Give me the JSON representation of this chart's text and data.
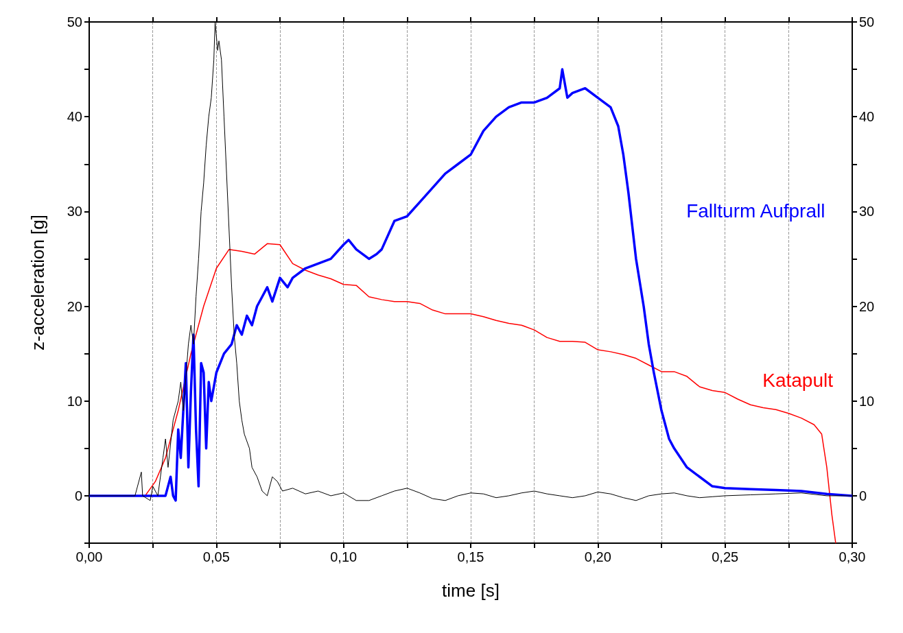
{
  "chart_data": {
    "type": "line",
    "xlabel": "time [s]",
    "ylabel": "z-acceleration [g]",
    "xlim": [
      0,
      0.3
    ],
    "ylim": [
      -5,
      50
    ],
    "y2lim": [
      -5,
      50
    ],
    "xticks": [
      {
        "value": 0,
        "label": "0,00"
      },
      {
        "value": 0.025,
        "label": null
      },
      {
        "value": 0.05,
        "label": "0,05"
      },
      {
        "value": 0.075,
        "label": null
      },
      {
        "value": 0.1,
        "label": "0,10"
      },
      {
        "value": 0.125,
        "label": null
      },
      {
        "value": 0.15,
        "label": "0,15"
      },
      {
        "value": 0.175,
        "label": null
      },
      {
        "value": 0.2,
        "label": "0,20"
      },
      {
        "value": 0.225,
        "label": null
      },
      {
        "value": 0.25,
        "label": "0,25"
      },
      {
        "value": 0.275,
        "label": null
      },
      {
        "value": 0.3,
        "label": "0,30"
      }
    ],
    "yticks": [
      {
        "value": -5,
        "label": null
      },
      0,
      {
        "value": 5,
        "label": null
      },
      10,
      {
        "value": 15,
        "label": null
      },
      20,
      {
        "value": 25,
        "label": null
      },
      30,
      {
        "value": 35,
        "label": null
      },
      40,
      {
        "value": 45,
        "label": null
      },
      50
    ],
    "y2ticks": [
      {
        "value": -5,
        "label": null
      },
      0,
      {
        "value": 5,
        "label": null
      },
      10,
      {
        "value": 15,
        "label": null
      },
      20,
      {
        "value": 25,
        "label": null
      },
      30,
      {
        "value": 35,
        "label": null
      },
      40,
      {
        "value": 45,
        "label": null
      },
      50
    ],
    "grid": "x",
    "legend": false,
    "marker": "none",
    "line_style": "solid",
    "series": [
      {
        "color": "#000000",
        "x": [
          0,
          0.018,
          0.0205,
          0.021,
          0.024,
          0.025,
          0.027,
          0.029,
          0.03,
          0.031,
          0.033,
          0.035,
          0.036,
          0.037,
          0.039,
          0.04,
          0.041,
          0.042,
          0.043,
          0.044,
          0.045,
          0.046,
          0.047,
          0.048,
          0.049,
          0.0495,
          0.0505,
          0.051,
          0.052,
          0.053,
          0.054,
          0.055,
          0.056,
          0.057,
          0.058,
          0.059,
          0.06,
          0.061,
          0.063,
          0.064,
          0.066,
          0.068,
          0.07,
          0.072,
          0.074,
          0.076,
          0.08,
          0.085,
          0.09,
          0.095,
          0.1,
          0.105,
          0.11,
          0.115,
          0.12,
          0.125,
          0.13,
          0.135,
          0.14,
          0.145,
          0.15,
          0.155,
          0.16,
          0.165,
          0.17,
          0.175,
          0.18,
          0.185,
          0.19,
          0.195,
          0.2,
          0.205,
          0.21,
          0.215,
          0.22,
          0.225,
          0.23,
          0.235,
          0.24,
          0.245,
          0.25,
          0.26,
          0.27,
          0.28,
          0.29,
          0.3
        ],
        "values": [
          0,
          0,
          2.5,
          0,
          -0.5,
          1,
          0,
          4,
          6,
          3,
          8,
          10,
          12,
          9,
          16,
          18,
          16,
          21,
          25,
          30,
          33,
          37,
          40,
          42,
          46,
          50,
          47,
          48,
          46,
          40,
          34,
          28,
          22,
          17,
          14,
          10,
          8,
          6.5,
          5,
          3,
          2,
          0.5,
          0,
          2,
          1.5,
          0.5,
          0.8,
          0.2,
          0.5,
          0,
          0.3,
          -0.5,
          -0.5,
          0,
          0.5,
          0.8,
          0.3,
          -0.3,
          -0.5,
          0,
          0.3,
          0.2,
          -0.2,
          0,
          0.3,
          0.5,
          0.2,
          0,
          -0.2,
          0,
          0.4,
          0.2,
          -0.2,
          -0.5,
          0,
          0.2,
          0.3,
          0,
          -0.2,
          -0.1,
          0,
          0.1,
          0.2,
          0.3,
          0,
          0
        ]
      },
      {
        "name": "Fallturm Aufprall",
        "color": "#0000ff",
        "x": [
          0,
          0.025,
          0.03,
          0.032,
          0.033,
          0.034,
          0.035,
          0.036,
          0.038,
          0.039,
          0.04,
          0.041,
          0.042,
          0.043,
          0.044,
          0.045,
          0.046,
          0.047,
          0.048,
          0.05,
          0.053,
          0.056,
          0.058,
          0.06,
          0.062,
          0.064,
          0.066,
          0.068,
          0.07,
          0.072,
          0.075,
          0.078,
          0.08,
          0.085,
          0.09,
          0.095,
          0.1,
          0.102,
          0.105,
          0.11,
          0.113,
          0.115,
          0.12,
          0.125,
          0.13,
          0.135,
          0.14,
          0.145,
          0.15,
          0.155,
          0.16,
          0.165,
          0.17,
          0.175,
          0.18,
          0.185,
          0.186,
          0.188,
          0.19,
          0.195,
          0.2,
          0.205,
          0.208,
          0.21,
          0.212,
          0.215,
          0.218,
          0.22,
          0.222,
          0.225,
          0.228,
          0.23,
          0.235,
          0.24,
          0.245,
          0.25,
          0.26,
          0.27,
          0.28,
          0.29,
          0.3
        ],
        "values": [
          0,
          0,
          0,
          2,
          0,
          -0.5,
          7,
          4,
          14,
          3,
          11,
          17,
          7,
          1,
          14,
          13,
          5,
          12,
          10,
          13,
          15,
          16,
          18,
          17,
          19,
          18,
          20,
          21,
          22,
          20.5,
          23,
          22,
          23,
          24,
          24.5,
          25,
          26.5,
          27,
          26,
          25,
          25.5,
          26,
          29,
          29.5,
          31,
          32.5,
          34,
          35,
          36,
          38.5,
          40,
          41,
          41.5,
          41.5,
          42,
          43,
          45,
          42,
          42.5,
          43,
          42,
          41,
          39,
          36,
          32,
          25,
          20,
          16,
          13,
          9,
          6,
          5,
          3,
          2,
          1,
          0.8,
          0.7,
          0.6,
          0.5,
          0.2,
          0
        ]
      },
      {
        "name": "Katapult",
        "color": "#ff0000",
        "x": [
          0.022,
          0.026,
          0.03,
          0.035,
          0.04,
          0.045,
          0.05,
          0.055,
          0.06,
          0.065,
          0.07,
          0.075,
          0.08,
          0.085,
          0.09,
          0.095,
          0.1,
          0.105,
          0.11,
          0.115,
          0.12,
          0.125,
          0.13,
          0.135,
          0.14,
          0.145,
          0.15,
          0.155,
          0.16,
          0.165,
          0.17,
          0.175,
          0.18,
          0.185,
          0.19,
          0.195,
          0.2,
          0.205,
          0.21,
          0.215,
          0.22,
          0.225,
          0.23,
          0.235,
          0.24,
          0.245,
          0.25,
          0.255,
          0.26,
          0.265,
          0.27,
          0.275,
          0.28,
          0.285,
          0.288,
          0.29,
          0.292,
          0.2935
        ],
        "values": [
          0,
          1.5,
          4,
          9,
          15,
          20,
          24,
          26,
          25.8,
          25.5,
          26.6,
          26.5,
          24.5,
          23.8,
          23.3,
          22.9,
          22.3,
          22.2,
          21,
          20.7,
          20.5,
          20.5,
          20.3,
          19.6,
          19.2,
          19.2,
          19.2,
          18.9,
          18.5,
          18.2,
          18,
          17.5,
          16.7,
          16.3,
          16.3,
          16.2,
          15.4,
          15.2,
          14.9,
          14.5,
          13.8,
          13.1,
          13.1,
          12.6,
          11.5,
          11.1,
          10.9,
          10.2,
          9.6,
          9.3,
          9.1,
          8.7,
          8.2,
          7.5,
          6.5,
          3,
          -2,
          -5
        ]
      }
    ]
  }
}
